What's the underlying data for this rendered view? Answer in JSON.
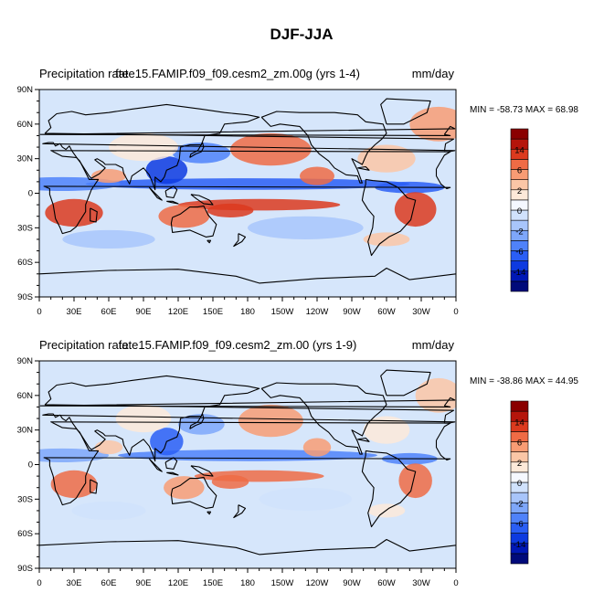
{
  "figure_title": "DJF-JJA",
  "colorbar_palette": [
    "#000a7a",
    "#0018b5",
    "#0d3ae0",
    "#2a5ef5",
    "#4f82fa",
    "#7ea7fa",
    "#a8c5fb",
    "#d0e2fc",
    "#f5f8ff",
    "#fde9d9",
    "#fbc6a6",
    "#f89c74",
    "#ef6b45",
    "#dc3a1e",
    "#b5150b",
    "#8a0000"
  ],
  "colorbar_labels": [
    "14",
    "6",
    "2",
    "0",
    "-2",
    "-6",
    "-14"
  ],
  "map_ocean_color": "#d6e6fb",
  "chart_data": [
    {
      "type": "heatmap",
      "variable_label": "Precipitation rate",
      "case_label": "fate15.FAMIP.f09_f09.cesm2_zm.00g (yrs 1-4)",
      "units": "mm/day",
      "stats_text": "MIN = -58.73 MAX =  68.98",
      "min": -58.73,
      "max": 68.98,
      "levels": [
        -14,
        -6,
        -2,
        0,
        2,
        6,
        14
      ],
      "lat_ticks": [
        "90N",
        "60N",
        "30N",
        "0",
        "30S",
        "60S",
        "90S"
      ],
      "lon_ticks": [
        "0",
        "30E",
        "60E",
        "90E",
        "120E",
        "150E",
        "180",
        "150W",
        "120W",
        "90W",
        "60W",
        "30W",
        "0"
      ]
    },
    {
      "type": "heatmap",
      "variable_label": "Precipitation rate",
      "case_label": "fate15.FAMIP.f09_f09.cesm2_zm.00 (yrs 1-9)",
      "units": "mm/day",
      "stats_text": "MIN = -38.86 MAX =  44.95",
      "min": -38.86,
      "max": 44.95,
      "levels": [
        -14,
        -6,
        -2,
        0,
        2,
        6,
        14
      ],
      "lat_ticks": [
        "90N",
        "60N",
        "30N",
        "0",
        "30S",
        "60S",
        "90S"
      ],
      "lon_ticks": [
        "0",
        "30E",
        "60E",
        "90E",
        "120E",
        "150E",
        "180",
        "150W",
        "120W",
        "90W",
        "60W",
        "30W",
        "0"
      ]
    }
  ]
}
